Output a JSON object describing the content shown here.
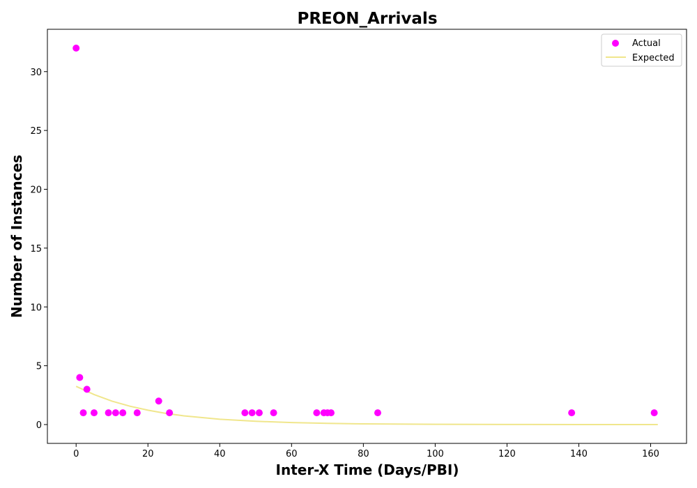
{
  "chart_data": {
    "type": "scatter",
    "title": "PREON_Arrivals",
    "xlabel": "Inter-X Time (Days/PBI)",
    "ylabel": "Number of Instances",
    "xlim": [
      -8,
      170
    ],
    "ylim": [
      -1.6,
      33.6
    ],
    "xticks": [
      0,
      20,
      40,
      60,
      80,
      100,
      120,
      140,
      160
    ],
    "yticks": [
      0,
      5,
      10,
      15,
      20,
      25,
      30
    ],
    "grid": false,
    "legend_position": "top-right",
    "series": [
      {
        "name": "Actual",
        "kind": "scatter",
        "color": "#ff00ff",
        "x": [
          0,
          1,
          2,
          3,
          5,
          9,
          11,
          13,
          17,
          23,
          26,
          47,
          49,
          51,
          55,
          67,
          69,
          70,
          71,
          84,
          138,
          161
        ],
        "y": [
          32,
          4,
          1,
          3,
          1,
          1,
          1,
          1,
          1,
          2,
          1,
          1,
          1,
          1,
          1,
          1,
          1,
          1,
          1,
          1,
          1,
          1
        ]
      },
      {
        "name": "Expected",
        "kind": "line",
        "color": "#f0e68c",
        "x": [
          0,
          5,
          10,
          15,
          20,
          25,
          30,
          40,
          50,
          60,
          70,
          80,
          100,
          120,
          140,
          162
        ],
        "y": [
          3.25,
          2.55,
          1.99,
          1.56,
          1.22,
          0.95,
          0.74,
          0.45,
          0.28,
          0.17,
          0.1,
          0.06,
          0.02,
          0.01,
          0.0,
          0.0
        ]
      }
    ]
  }
}
